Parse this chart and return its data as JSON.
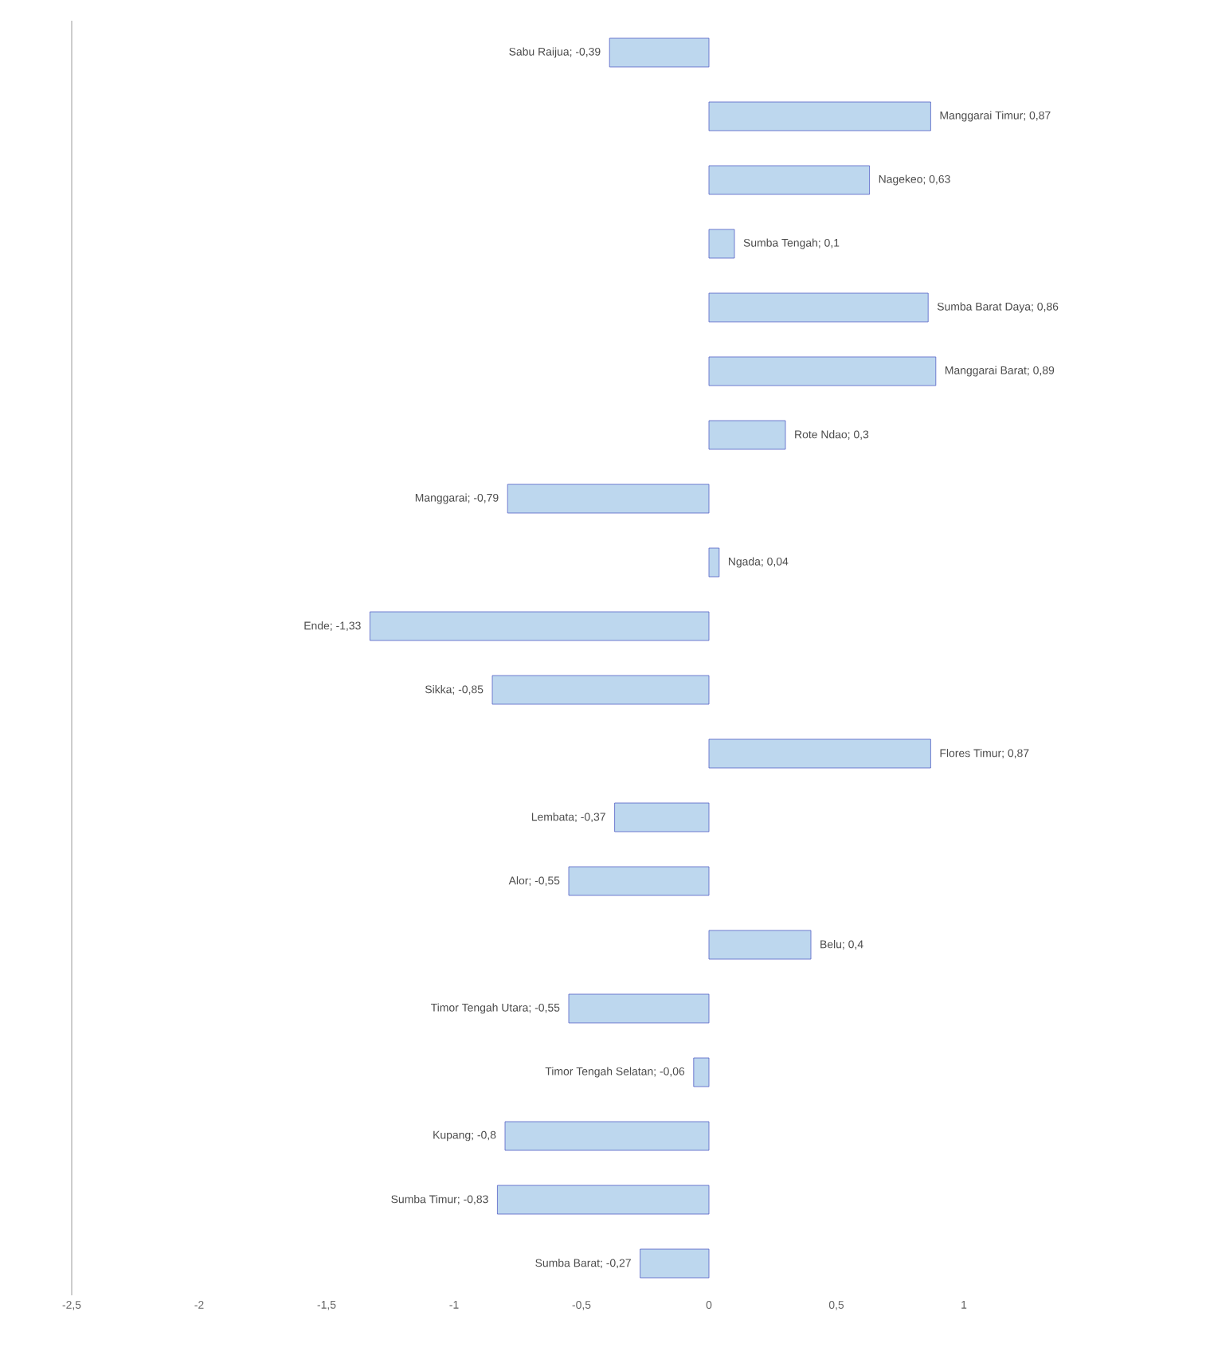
{
  "chart_data": {
    "type": "bar",
    "orientation": "horizontal",
    "categories": [
      null,
      null,
      null,
      null,
      null,
      null,
      null,
      null,
      null,
      null,
      null,
      null,
      null,
      null,
      null,
      null,
      null,
      null,
      null,
      null
    ],
    "values": [
      -0.39,
      0.87,
      0.63,
      0.1,
      0.86,
      0.89,
      0.3,
      -0.79,
      0.04,
      -1.33,
      -0.85,
      0.87,
      -0.37,
      -0.55,
      0.4,
      -0.55,
      -0.06,
      -0.8,
      -0.83,
      -0.27
    ],
    "value_labels": [
      "Sabu Raijua; -0,39",
      "Manggarai Timur; 0,87",
      "Nagekeo; 0,63",
      "Sumba Tengah; 0,1",
      "Sumba Barat Daya; 0,86",
      "Manggarai Barat; 0,89",
      "Rote Ndao; 0,3",
      "Manggarai; -0,79",
      "Ngada; 0,04",
      "Ende; -1,33",
      "Sikka; -0,85",
      "Flores Timur; 0,87",
      "Lembata; -0,37",
      "Alor; -0,55",
      "Belu; 0,4",
      "Timor Tengah Utara; -0,55",
      "Timor Tengah Selatan; -0,06",
      "Kupang; -0,8",
      "Sumba Timur; -0,83",
      "Sumba Barat; -0,27"
    ],
    "color": "#bdd7ee",
    "xlim": [
      -2.5,
      1
    ],
    "xticks": [
      {
        "value": -2.5,
        "label": "-2,5"
      },
      {
        "value": -2,
        "label": "-2"
      },
      {
        "value": -1.5,
        "label": "-1,5"
      },
      {
        "value": -1,
        "label": "-1"
      },
      {
        "value": -0.5,
        "label": "-0,5"
      },
      {
        "value": 0,
        "label": "0"
      },
      {
        "value": 0.5,
        "label": "0,5"
      },
      {
        "value": 1,
        "label": "1"
      }
    ]
  }
}
